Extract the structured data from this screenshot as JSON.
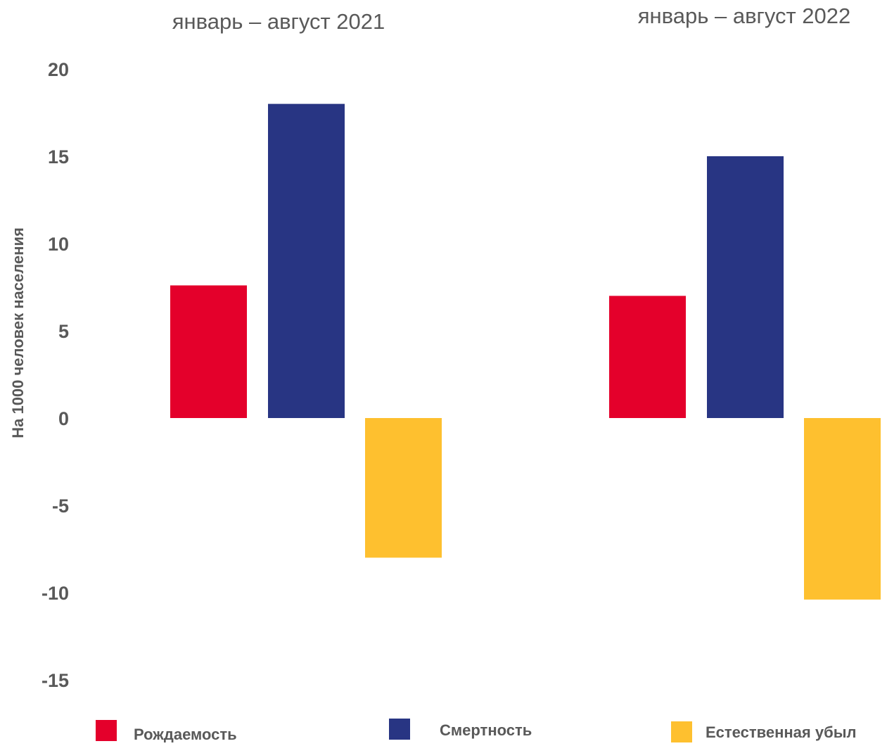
{
  "chart_data": {
    "type": "bar",
    "categories": [
      "январь –  август 2021",
      "январь –  август 2022"
    ],
    "series": [
      {
        "name": "Рождаемость",
        "values": [
          7.6,
          7.0
        ],
        "color": "#e4002b"
      },
      {
        "name": "Смертность",
        "values": [
          18.0,
          15.0
        ],
        "color": "#283583"
      },
      {
        "name": "Естественная убыл",
        "values": [
          -8.0,
          -10.4
        ],
        "color": "#fec02f"
      }
    ],
    "ylabel": "На 1000 человек населения",
    "ylim": [
      -15,
      20
    ],
    "yticks": [
      "20",
      "15",
      "10",
      "5",
      "0",
      "-5",
      "-10",
      "-15"
    ],
    "ytick_values": [
      20,
      15,
      10,
      5,
      0,
      -5,
      -10,
      -15
    ],
    "grid": false,
    "legend_position": "bottom"
  }
}
